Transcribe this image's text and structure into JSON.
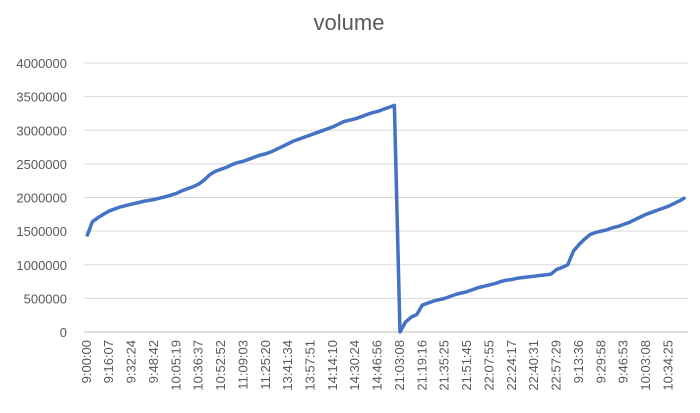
{
  "chart_data": {
    "type": "line",
    "title": "volume",
    "categories": [
      "9:00:00",
      null,
      null,
      null,
      "9:16:07",
      null,
      null,
      null,
      "9:32:24",
      null,
      null,
      null,
      "9:48:42",
      null,
      null,
      null,
      "10:05:19",
      null,
      null,
      null,
      "10:36:37",
      null,
      null,
      null,
      "10:52:52",
      null,
      null,
      null,
      "11:09:03",
      null,
      null,
      null,
      "11:25:20",
      null,
      null,
      null,
      "13:41:34",
      null,
      null,
      null,
      "13:57:51",
      null,
      null,
      null,
      "14:14:10",
      null,
      null,
      null,
      "14:30:24",
      null,
      null,
      null,
      "14:46:56",
      null,
      null,
      null,
      "21:03:08",
      null,
      null,
      null,
      "21:19:16",
      null,
      null,
      null,
      "21:35:25",
      null,
      null,
      null,
      "21:51:45",
      null,
      null,
      null,
      "22:07:55",
      null,
      null,
      null,
      "22:24:17",
      null,
      null,
      null,
      "22:40:31",
      null,
      null,
      null,
      "22:57:29",
      null,
      null,
      null,
      "9:13:36",
      null,
      null,
      null,
      "9:29:58",
      null,
      null,
      null,
      "9:46:53",
      null,
      null,
      null,
      "10:03:08",
      null,
      null,
      null,
      "10:34:25",
      null,
      null,
      null
    ],
    "series": [
      {
        "name": "volume",
        "color": "#4472c4",
        "values": [
          1420000,
          1640000,
          1700000,
          1750000,
          1800000,
          1830000,
          1860000,
          1880000,
          1900000,
          1920000,
          1940000,
          1955000,
          1970000,
          1990000,
          2010000,
          2035000,
          2060000,
          2100000,
          2130000,
          2160000,
          2200000,
          2260000,
          2340000,
          2390000,
          2420000,
          2450000,
          2490000,
          2520000,
          2540000,
          2570000,
          2600000,
          2630000,
          2650000,
          2680000,
          2720000,
          2760000,
          2800000,
          2840000,
          2870000,
          2900000,
          2930000,
          2960000,
          2990000,
          3020000,
          3050000,
          3090000,
          3130000,
          3150000,
          3170000,
          3200000,
          3230000,
          3260000,
          3280000,
          3310000,
          3340000,
          3370000,
          0,
          150000,
          220000,
          260000,
          400000,
          430000,
          460000,
          480000,
          500000,
          530000,
          560000,
          580000,
          600000,
          630000,
          660000,
          680000,
          700000,
          720000,
          750000,
          770000,
          780000,
          800000,
          810000,
          820000,
          830000,
          840000,
          850000,
          860000,
          930000,
          960000,
          1000000,
          1200000,
          1300000,
          1380000,
          1450000,
          1480000,
          1500000,
          1520000,
          1550000,
          1570000,
          1600000,
          1630000,
          1670000,
          1710000,
          1750000,
          1780000,
          1810000,
          1840000,
          1870000,
          1910000,
          1950000,
          2000000
        ]
      }
    ],
    "ylim": [
      0,
      4000000
    ],
    "yticks": [
      0,
      500000,
      1000000,
      1500000,
      2000000,
      2500000,
      3000000,
      3500000,
      4000000
    ],
    "grid": true
  }
}
